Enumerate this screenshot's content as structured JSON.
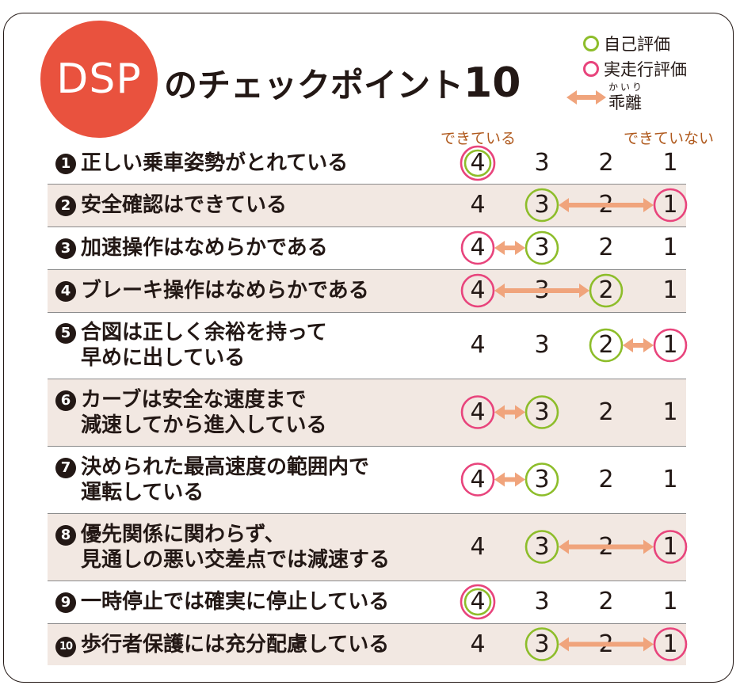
{
  "badge": "DSP",
  "title": {
    "text": "のチェックポイント",
    "number": "10"
  },
  "legend": {
    "self": "自己評価",
    "actual": "実走行評価",
    "gap_ruby": "かいり",
    "gap": "乖離",
    "colors": {
      "self": "#8dbd2a",
      "actual": "#e8447c",
      "gap": "#f0a47c"
    }
  },
  "scale": {
    "left": "できている",
    "right": "できていない",
    "values": [
      "4",
      "3",
      "2",
      "1"
    ]
  },
  "rows": [
    {
      "bullet": "1",
      "line1": "正しい乗車姿勢がとれている",
      "line2": "",
      "self": 4,
      "actual": 4,
      "shade": false
    },
    {
      "bullet": "2",
      "line1": "安全確認はできている",
      "line2": "",
      "self": 3,
      "actual": 1,
      "shade": true
    },
    {
      "bullet": "3",
      "line1": "加速操作はなめらかである",
      "line2": "",
      "self": 3,
      "actual": 4,
      "shade": false
    },
    {
      "bullet": "4",
      "line1": "ブレーキ操作はなめらかである",
      "line2": "",
      "self": 2,
      "actual": 4,
      "shade": true
    },
    {
      "bullet": "5",
      "line1": "合図は正しく余裕を持って",
      "line2": "早めに出している",
      "self": 2,
      "actual": 1,
      "shade": false
    },
    {
      "bullet": "6",
      "line1": "カーブは安全な速度まで",
      "line2": "減速してから進入している",
      "self": 3,
      "actual": 4,
      "shade": true
    },
    {
      "bullet": "7",
      "line1": "決められた最高速度の範囲内で",
      "line2": "運転している",
      "self": 3,
      "actual": 4,
      "shade": false
    },
    {
      "bullet": "8",
      "line1": "優先関係に関わらず、",
      "line2": "見通しの悪い交差点では減速する",
      "self": 3,
      "actual": 1,
      "shade": true
    },
    {
      "bullet": "9",
      "line1": "一時停止では確実に停止している",
      "line2": "",
      "self": 4,
      "actual": 4,
      "shade": false
    },
    {
      "bullet": "10",
      "line1": "歩行者保護には充分配慮している",
      "line2": "",
      "self": 3,
      "actual": 1,
      "shade": true
    }
  ]
}
